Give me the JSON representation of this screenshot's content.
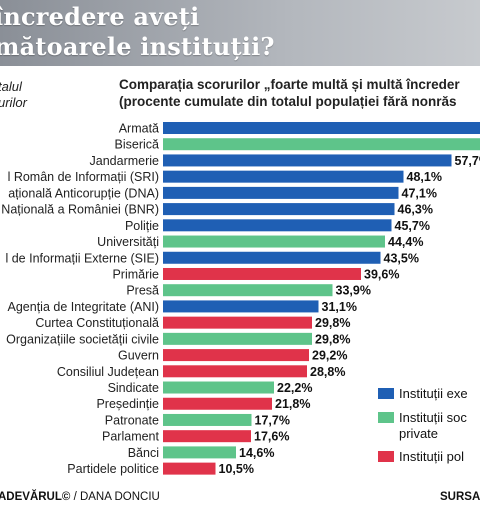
{
  "header": {
    "title_line1": "încredere aveți",
    "title_line2": "mătoarele instituții?"
  },
  "side_caption": {
    "line1": "talul",
    "line2": "urilor"
  },
  "subtitle": {
    "line1": "Comparația scorurilor „foarte multă și multă încreder",
    "line2": "(procente cumulate din totalul populației fără nonrăs"
  },
  "colors": {
    "executive": "#1f5fb4",
    "civil": "#5ec48a",
    "political": "#e0334a"
  },
  "legend": [
    {
      "key": "executive",
      "label": "Instituții exe"
    },
    {
      "key": "civil",
      "label": "Instituții soc",
      "label2": "private"
    },
    {
      "key": "political",
      "label": "Instituții pol"
    }
  ],
  "chart_data": {
    "type": "bar",
    "orientation": "horizontal",
    "title": "Comparația scorurilor „foarte multă și multă încreder",
    "subtitle": "(procente cumulate din totalul populației fără nonrăs",
    "xlim": [
      0,
      75
    ],
    "categories": [
      "Armată",
      "Biserică",
      "Jandarmerie",
      "l Român de Informații (SRI)",
      "ațională Anticorupție (DNA)",
      "Națională a României (BNR)",
      "Poliție",
      "Universități",
      "l de Informații Externe (SIE)",
      "Primărie",
      "Presă",
      "Agenția de Integritate (ANI)",
      "Curtea Constituțională",
      "Organizațiile societății civile",
      "Guvern",
      "Consiliul Județean",
      "Sindicate",
      "Președinție",
      "Patronate",
      "Parlament",
      "Bănci",
      "Partidele politice"
    ],
    "values": [
      70,
      69,
      57.7,
      48.1,
      47.1,
      46.3,
      45.7,
      44.4,
      43.5,
      39.6,
      33.9,
      31.1,
      29.8,
      29.8,
      29.2,
      28.8,
      22.2,
      21.8,
      17.7,
      17.6,
      14.6,
      10.5
    ],
    "value_labels": [
      "",
      "(",
      "57,7%",
      "48,1%",
      "47,1%",
      "46,3%",
      "45,7%",
      "44,4%",
      "43,5%",
      "39,6%",
      "33,9%",
      "31,1%",
      "29,8%",
      "29,8%",
      "29,2%",
      "28,8%",
      "22,2%",
      "21,8%",
      "17,7%",
      "17,6%",
      "14,6%",
      "10,5%"
    ],
    "groups": [
      "executive",
      "civil",
      "executive",
      "executive",
      "executive",
      "executive",
      "executive",
      "civil",
      "executive",
      "political",
      "civil",
      "executive",
      "political",
      "civil",
      "political",
      "political",
      "civil",
      "political",
      "civil",
      "political",
      "civil",
      "political"
    ]
  },
  "footer": {
    "brand": "ADEVĂRUL©",
    "author": " / DANA DONCIU",
    "source": "SURSA"
  }
}
